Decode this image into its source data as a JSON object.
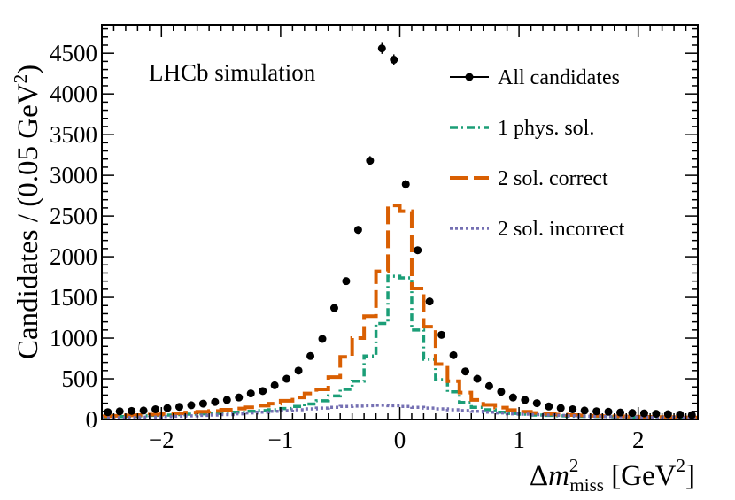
{
  "chart_data": {
    "type": "line",
    "annotation": "LHCb simulation",
    "ylabel": "Candidates / (0.05 GeV²)",
    "ylabel_main": "Candidates / (0.05 GeV",
    "ylabel_sup": "2",
    "ylabel_close": ")",
    "xlabel_delta": "Δ",
    "xlabel_m": "m",
    "xlabel_sup": "2",
    "xlabel_sub": "miss",
    "xlabel_unit": " [GeV",
    "xlabel_unit_sup": "2",
    "xlabel_unit_close": "]",
    "xlim": [
      -2.5,
      2.5
    ],
    "ylim": [
      0,
      4850
    ],
    "x_ticks": [
      "−2",
      "−1",
      "0",
      "1",
      "2"
    ],
    "y_ticks": [
      "0",
      "500",
      "1000",
      "1500",
      "2000",
      "2500",
      "3000",
      "3500",
      "4000",
      "4500"
    ],
    "legend_position": "top-right",
    "series": [
      {
        "name": "All candidates",
        "style": "markers",
        "color": "#000000",
        "x": [
          -2.45,
          -2.35,
          -2.25,
          -2.15,
          -2.05,
          -1.95,
          -1.85,
          -1.75,
          -1.65,
          -1.55,
          -1.45,
          -1.35,
          -1.25,
          -1.15,
          -1.05,
          -0.95,
          -0.85,
          -0.75,
          -0.65,
          -0.55,
          -0.45,
          -0.35,
          -0.25,
          -0.15,
          -0.05,
          0.05,
          0.15,
          0.25,
          0.35,
          0.45,
          0.55,
          0.65,
          0.75,
          0.85,
          0.95,
          1.05,
          1.15,
          1.25,
          1.35,
          1.45,
          1.55,
          1.65,
          1.75,
          1.85,
          1.95,
          2.05,
          2.15,
          2.25,
          2.35,
          2.45
        ],
        "values": [
          90,
          100,
          105,
          110,
          125,
          140,
          155,
          175,
          195,
          215,
          240,
          270,
          320,
          350,
          420,
          500,
          600,
          780,
          990,
          1370,
          1700,
          2330,
          3180,
          4560,
          4420,
          2890,
          2080,
          1450,
          1040,
          790,
          590,
          500,
          410,
          340,
          270,
          240,
          200,
          160,
          140,
          125,
          110,
          100,
          95,
          85,
          80,
          75,
          70,
          65,
          60,
          55
        ]
      },
      {
        "name": "1 phys. sol.",
        "style": "dashdot",
        "color": "#1b9e77",
        "edges": [
          -2.5,
          -2.4,
          -2.3,
          -2.2,
          -2.1,
          -2.0,
          -1.9,
          -1.8,
          -1.7,
          -1.6,
          -1.5,
          -1.4,
          -1.3,
          -1.2,
          -1.1,
          -1.0,
          -0.9,
          -0.8,
          -0.7,
          -0.6,
          -0.5,
          -0.4,
          -0.3,
          -0.2,
          -0.1,
          0.0,
          0.1,
          0.2,
          0.3,
          0.4,
          0.5,
          0.6,
          0.7,
          0.8,
          0.9,
          1.0,
          1.1,
          1.2,
          1.3,
          1.4,
          1.5,
          1.6,
          1.7,
          1.8,
          1.9,
          2.0,
          2.1,
          2.2,
          2.3,
          2.4,
          2.5
        ],
        "values": [
          30,
          35,
          40,
          45,
          50,
          55,
          60,
          65,
          70,
          75,
          80,
          90,
          100,
          110,
          120,
          135,
          160,
          190,
          230,
          290,
          370,
          470,
          780,
          1180,
          1760,
          1740,
          1100,
          740,
          490,
          340,
          210,
          150,
          120,
          90,
          75,
          65,
          55,
          50,
          45,
          40,
          38,
          35,
          33,
          30,
          28,
          27,
          26,
          25,
          24,
          23
        ]
      },
      {
        "name": "2 sol. correct",
        "style": "longdash",
        "color": "#d95f02",
        "edges": [
          -2.5,
          -2.4,
          -2.3,
          -2.2,
          -2.1,
          -2.0,
          -1.9,
          -1.8,
          -1.7,
          -1.6,
          -1.5,
          -1.4,
          -1.3,
          -1.2,
          -1.1,
          -1.0,
          -0.9,
          -0.8,
          -0.7,
          -0.6,
          -0.5,
          -0.4,
          -0.3,
          -0.2,
          -0.1,
          0.0,
          0.1,
          0.2,
          0.3,
          0.4,
          0.5,
          0.6,
          0.7,
          0.8,
          0.9,
          1.0,
          1.1,
          1.2,
          1.3,
          1.4,
          1.5,
          1.6,
          1.7,
          1.8,
          1.9,
          2.0,
          2.1,
          2.2,
          2.3,
          2.4,
          2.5
        ],
        "values": [
          40,
          45,
          50,
          55,
          60,
          65,
          75,
          85,
          95,
          105,
          120,
          135,
          150,
          170,
          195,
          230,
          270,
          320,
          370,
          520,
          770,
          1000,
          1270,
          1820,
          2630,
          2560,
          1610,
          1140,
          680,
          470,
          330,
          240,
          180,
          145,
          115,
          95,
          80,
          70,
          60,
          55,
          50,
          45,
          40,
          38,
          35,
          33,
          30,
          28,
          26,
          25
        ]
      },
      {
        "name": "2 sol. incorrect",
        "style": "dotted",
        "color": "#7570b3",
        "edges": [
          -2.5,
          -2.4,
          -2.3,
          -2.2,
          -2.1,
          -2.0,
          -1.9,
          -1.8,
          -1.7,
          -1.6,
          -1.5,
          -1.4,
          -1.3,
          -1.2,
          -1.1,
          -1.0,
          -0.9,
          -0.8,
          -0.7,
          -0.6,
          -0.5,
          -0.4,
          -0.3,
          -0.2,
          -0.1,
          0.0,
          0.1,
          0.2,
          0.3,
          0.4,
          0.5,
          0.6,
          0.7,
          0.8,
          0.9,
          1.0,
          1.1,
          1.2,
          1.3,
          1.4,
          1.5,
          1.6,
          1.7,
          1.8,
          1.9,
          2.0,
          2.1,
          2.2,
          2.3,
          2.4,
          2.5
        ],
        "values": [
          20,
          22,
          25,
          28,
          30,
          35,
          40,
          45,
          50,
          55,
          60,
          70,
          80,
          90,
          100,
          110,
          120,
          130,
          140,
          150,
          160,
          165,
          170,
          175,
          170,
          160,
          150,
          140,
          130,
          120,
          110,
          100,
          90,
          80,
          70,
          65,
          60,
          55,
          50,
          45,
          40,
          38,
          35,
          32,
          30,
          28,
          26,
          24,
          22,
          20
        ]
      }
    ]
  }
}
